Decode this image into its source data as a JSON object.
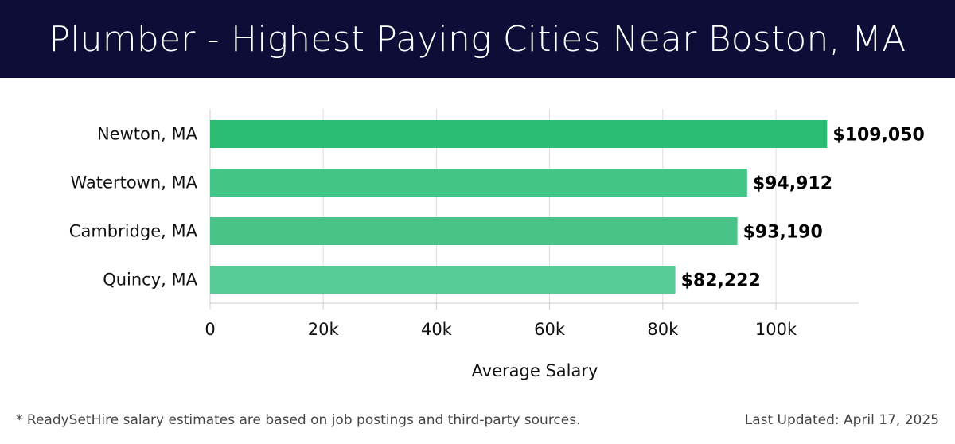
{
  "header": {
    "title": "Plumber - Highest Paying Cities Near Boston, MA"
  },
  "chart_data": {
    "type": "bar",
    "orientation": "horizontal",
    "categories": [
      "Newton, MA",
      "Watertown, MA",
      "Cambridge, MA",
      "Quincy, MA"
    ],
    "values": [
      109050,
      94912,
      93190,
      82222
    ],
    "data_labels": [
      "$109,050",
      "$94,912",
      "$93,190",
      "$82,222"
    ],
    "colors": [
      "#2bbd74",
      "#43c587",
      "#48c489",
      "#58cc97"
    ],
    "xlabel": "Average Salary",
    "ylabel": "",
    "xlim": [
      0,
      114600
    ],
    "xticks": [
      0,
      20000,
      40000,
      60000,
      80000,
      100000
    ],
    "xtick_labels": [
      "0",
      "20k",
      "40k",
      "60k",
      "80k",
      "100k"
    ],
    "grid": true
  },
  "footer": {
    "note": "* ReadySetHire salary estimates are based on job postings and third-party sources.",
    "updated": "Last Updated: April 17, 2025"
  }
}
